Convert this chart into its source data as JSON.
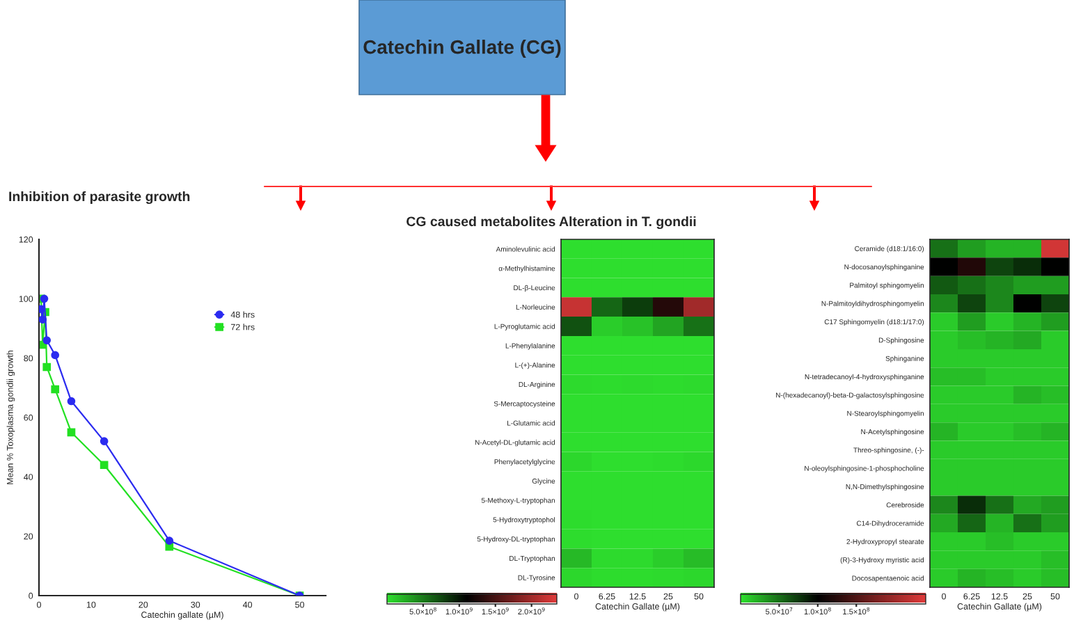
{
  "chart_data": [
    {
      "type": "line",
      "title": "Inhibition of parasite growth",
      "xlabel": "Catechin gallate (µM)",
      "ylabel": "Mean % Toxoplasma gondii growth",
      "annotations": [
        "Catechin Gallate (CG)"
      ],
      "series": [
        {
          "name": "48 hrs",
          "color": "#2b2bf0",
          "marker": "circle",
          "x": [
            0.4,
            0.7,
            1.0,
            1.5,
            3.1,
            6.2,
            12.5,
            25,
            50
          ],
          "values": [
            96.5,
            93,
            100,
            86,
            81,
            65.5,
            52,
            18.5,
            0
          ]
        },
        {
          "name": "72 hrs",
          "color": "#22e022",
          "marker": "square",
          "x": [
            0.4,
            0.7,
            1.2,
            1.5,
            3.1,
            6.2,
            12.5,
            25,
            50
          ],
          "values": [
            100,
            84.5,
            95.5,
            77,
            69.5,
            55,
            44,
            16.5,
            0
          ]
        }
      ],
      "xlim": [
        0,
        55
      ],
      "xticks": [
        0,
        10,
        20,
        30,
        40,
        50
      ],
      "ylim": [
        0,
        120
      ],
      "yticks": [
        0,
        20,
        40,
        60,
        80,
        100,
        120
      ],
      "legend": "top right",
      "grid": false,
      "line_style": "solid"
    },
    {
      "type": "heatmap",
      "title": "CG caused metabolites Alteration in T. gondii",
      "xlabel": "Catechin Gallate (µM)",
      "categories": [
        "0",
        "6.25",
        "12.5",
        "25",
        "50"
      ],
      "y_categories": [
        "Aminolevulinic acid",
        "α-Methylhistamine",
        "DL-β-Leucine",
        "L-Norleucine",
        "L-Pyroglutamic acid",
        "L-Phenylalanine",
        "L-(+)-Alanine",
        "DL-Arginine",
        "S-Mercaptocysteine",
        "L-Glutamic acid",
        "N-Acetyl-DL-glutamic acid",
        "Phenylacetylglycine",
        "Glycine",
        "5-Methoxy-L-tryptophan",
        "5-Hydroxytryptophol",
        "5-Hydroxy-DL-tryptophan",
        "DL-Tryptophan",
        "DL-Tyrosine"
      ],
      "cells": [
        [
          10000000.0,
          10000000.0,
          10000000.0,
          10000000.0,
          10000000.0
        ],
        [
          10000000.0,
          10000000.0,
          10000000.0,
          10000000.0,
          10000000.0
        ],
        [
          10000000.0,
          10000000.0,
          10000000.0,
          10000000.0,
          10000000.0
        ],
        [
          2200000000.0,
          600000000.0,
          800000000.0,
          1300000000.0,
          2000000000.0
        ],
        [
          700000000.0,
          100000000.0,
          150000000.0,
          300000000.0,
          550000000.0
        ],
        [
          10000000.0,
          10000000.0,
          10000000.0,
          10000000.0,
          10000000.0
        ],
        [
          10000000.0,
          10000000.0,
          10000000.0,
          10000000.0,
          10000000.0
        ],
        [
          30000000.0,
          20000000.0,
          30000000.0,
          20000000.0,
          30000000.0
        ],
        [
          10000000.0,
          10000000.0,
          10000000.0,
          10000000.0,
          10000000.0
        ],
        [
          10000000.0,
          10000000.0,
          10000000.0,
          10000000.0,
          10000000.0
        ],
        [
          10000000.0,
          10000000.0,
          10000000.0,
          10000000.0,
          10000000.0
        ],
        [
          50000000.0,
          10000000.0,
          10000000.0,
          20000000.0,
          40000000.0
        ],
        [
          10000000.0,
          10000000.0,
          10000000.0,
          10000000.0,
          10000000.0
        ],
        [
          10000000.0,
          10000000.0,
          10000000.0,
          10000000.0,
          10000000.0
        ],
        [
          20000000.0,
          10000000.0,
          10000000.0,
          10000000.0,
          10000000.0
        ],
        [
          20000000.0,
          10000000.0,
          10000000.0,
          10000000.0,
          10000000.0
        ],
        [
          200000000.0,
          30000000.0,
          30000000.0,
          100000000.0,
          180000000.0
        ],
        [
          50000000.0,
          20000000.0,
          20000000.0,
          30000000.0,
          50000000.0
        ]
      ],
      "clim": [
        0,
        2350000000.0
      ],
      "cticks": [
        {
          "value": 500000000.0,
          "label": "5.0×10$^{8}$"
        },
        {
          "value": 1000000000.0,
          "label": "1.0×10$^{9}$"
        },
        {
          "value": 1500000000.0,
          "label": "1.5×10$^{9}$"
        },
        {
          "value": 2000000000.0,
          "label": "2.0×10$^{9}$"
        }
      ]
    },
    {
      "type": "heatmap",
      "xlabel": "Catechin Gallate (µM)",
      "categories": [
        "0",
        "6.25",
        "12.5",
        "25",
        "50"
      ],
      "y_categories": [
        "Ceramide (d18:1/16:0)",
        "N-docosanoylsphinganine",
        "Palmitoyl sphingomyelin",
        "N-Palmitoyldihydrosphingomyelin",
        "C17 Sphingomyelin (d18:1/17:0)",
        "D-Sphingosine",
        "Sphinganine",
        "N-tetradecanoyl-4-hydroxysphinganine",
        "N-(hexadecanoyl)-beta-D-galactosylsphingosine",
        "N-Stearoylsphingomyelin",
        "N-Acetylsphingosine",
        "Threo-sphingosine, (-)-",
        "N-oleoylsphingosine-1-phosphocholine",
        "N,N-Dimethylsphingosine",
        "Cerebroside",
        "C14-Dihydroceramide",
        "2-Hydroxypropyl stearate",
        "(R)-3-Hydroxy myristic acid",
        "Docosapentaenoic acid"
      ],
      "cells": [
        [
          50000000.0,
          30000000.0,
          20000000.0,
          20000000.0,
          230000000.0
        ],
        [
          100000000.0,
          120000000.0,
          70000000.0,
          80000000.0,
          100000000.0
        ],
        [
          60000000.0,
          50000000.0,
          40000000.0,
          30000000.0,
          30000000.0
        ],
        [
          40000000.0,
          70000000.0,
          40000000.0,
          100000000.0,
          70000000.0
        ],
        [
          10000000.0,
          30000000.0,
          10000000.0,
          20000000.0,
          30000000.0
        ],
        [
          10000000.0,
          15000000.0,
          20000000.0,
          25000000.0,
          10000000.0
        ],
        [
          10000000.0,
          10000000.0,
          10000000.0,
          10000000.0,
          10000000.0
        ],
        [
          15000000.0,
          15000000.0,
          10000000.0,
          10000000.0,
          10000000.0
        ],
        [
          10000000.0,
          10000000.0,
          10000000.0,
          20000000.0,
          15000000.0
        ],
        [
          10000000.0,
          10000000.0,
          10000000.0,
          10000000.0,
          10000000.0
        ],
        [
          20000000.0,
          10000000.0,
          10000000.0,
          15000000.0,
          20000000.0
        ],
        [
          10000000.0,
          10000000.0,
          10000000.0,
          10000000.0,
          10000000.0
        ],
        [
          10000000.0,
          10000000.0,
          10000000.0,
          10000000.0,
          10000000.0
        ],
        [
          10000000.0,
          10000000.0,
          10000000.0,
          10000000.0,
          10000000.0
        ],
        [
          40000000.0,
          80000000.0,
          50000000.0,
          25000000.0,
          30000000.0
        ],
        [
          25000000.0,
          55000000.0,
          20000000.0,
          50000000.0,
          30000000.0
        ],
        [
          10000000.0,
          10000000.0,
          15000000.0,
          10000000.0,
          10000000.0
        ],
        [
          10000000.0,
          10000000.0,
          10000000.0,
          10000000.0,
          15000000.0
        ],
        [
          10000000.0,
          20000000.0,
          15000000.0,
          10000000.0,
          15000000.0
        ]
      ],
      "clim": [
        0,
        240000000.0
      ],
      "cticks": [
        {
          "value": 50000000.0,
          "label": "5.0×10$^{7}$"
        },
        {
          "value": 100000000.0,
          "label": "1.0×10$^{8}$"
        },
        {
          "value": 150000000.0,
          "label": "1.5×10$^{8}$"
        }
      ]
    }
  ]
}
